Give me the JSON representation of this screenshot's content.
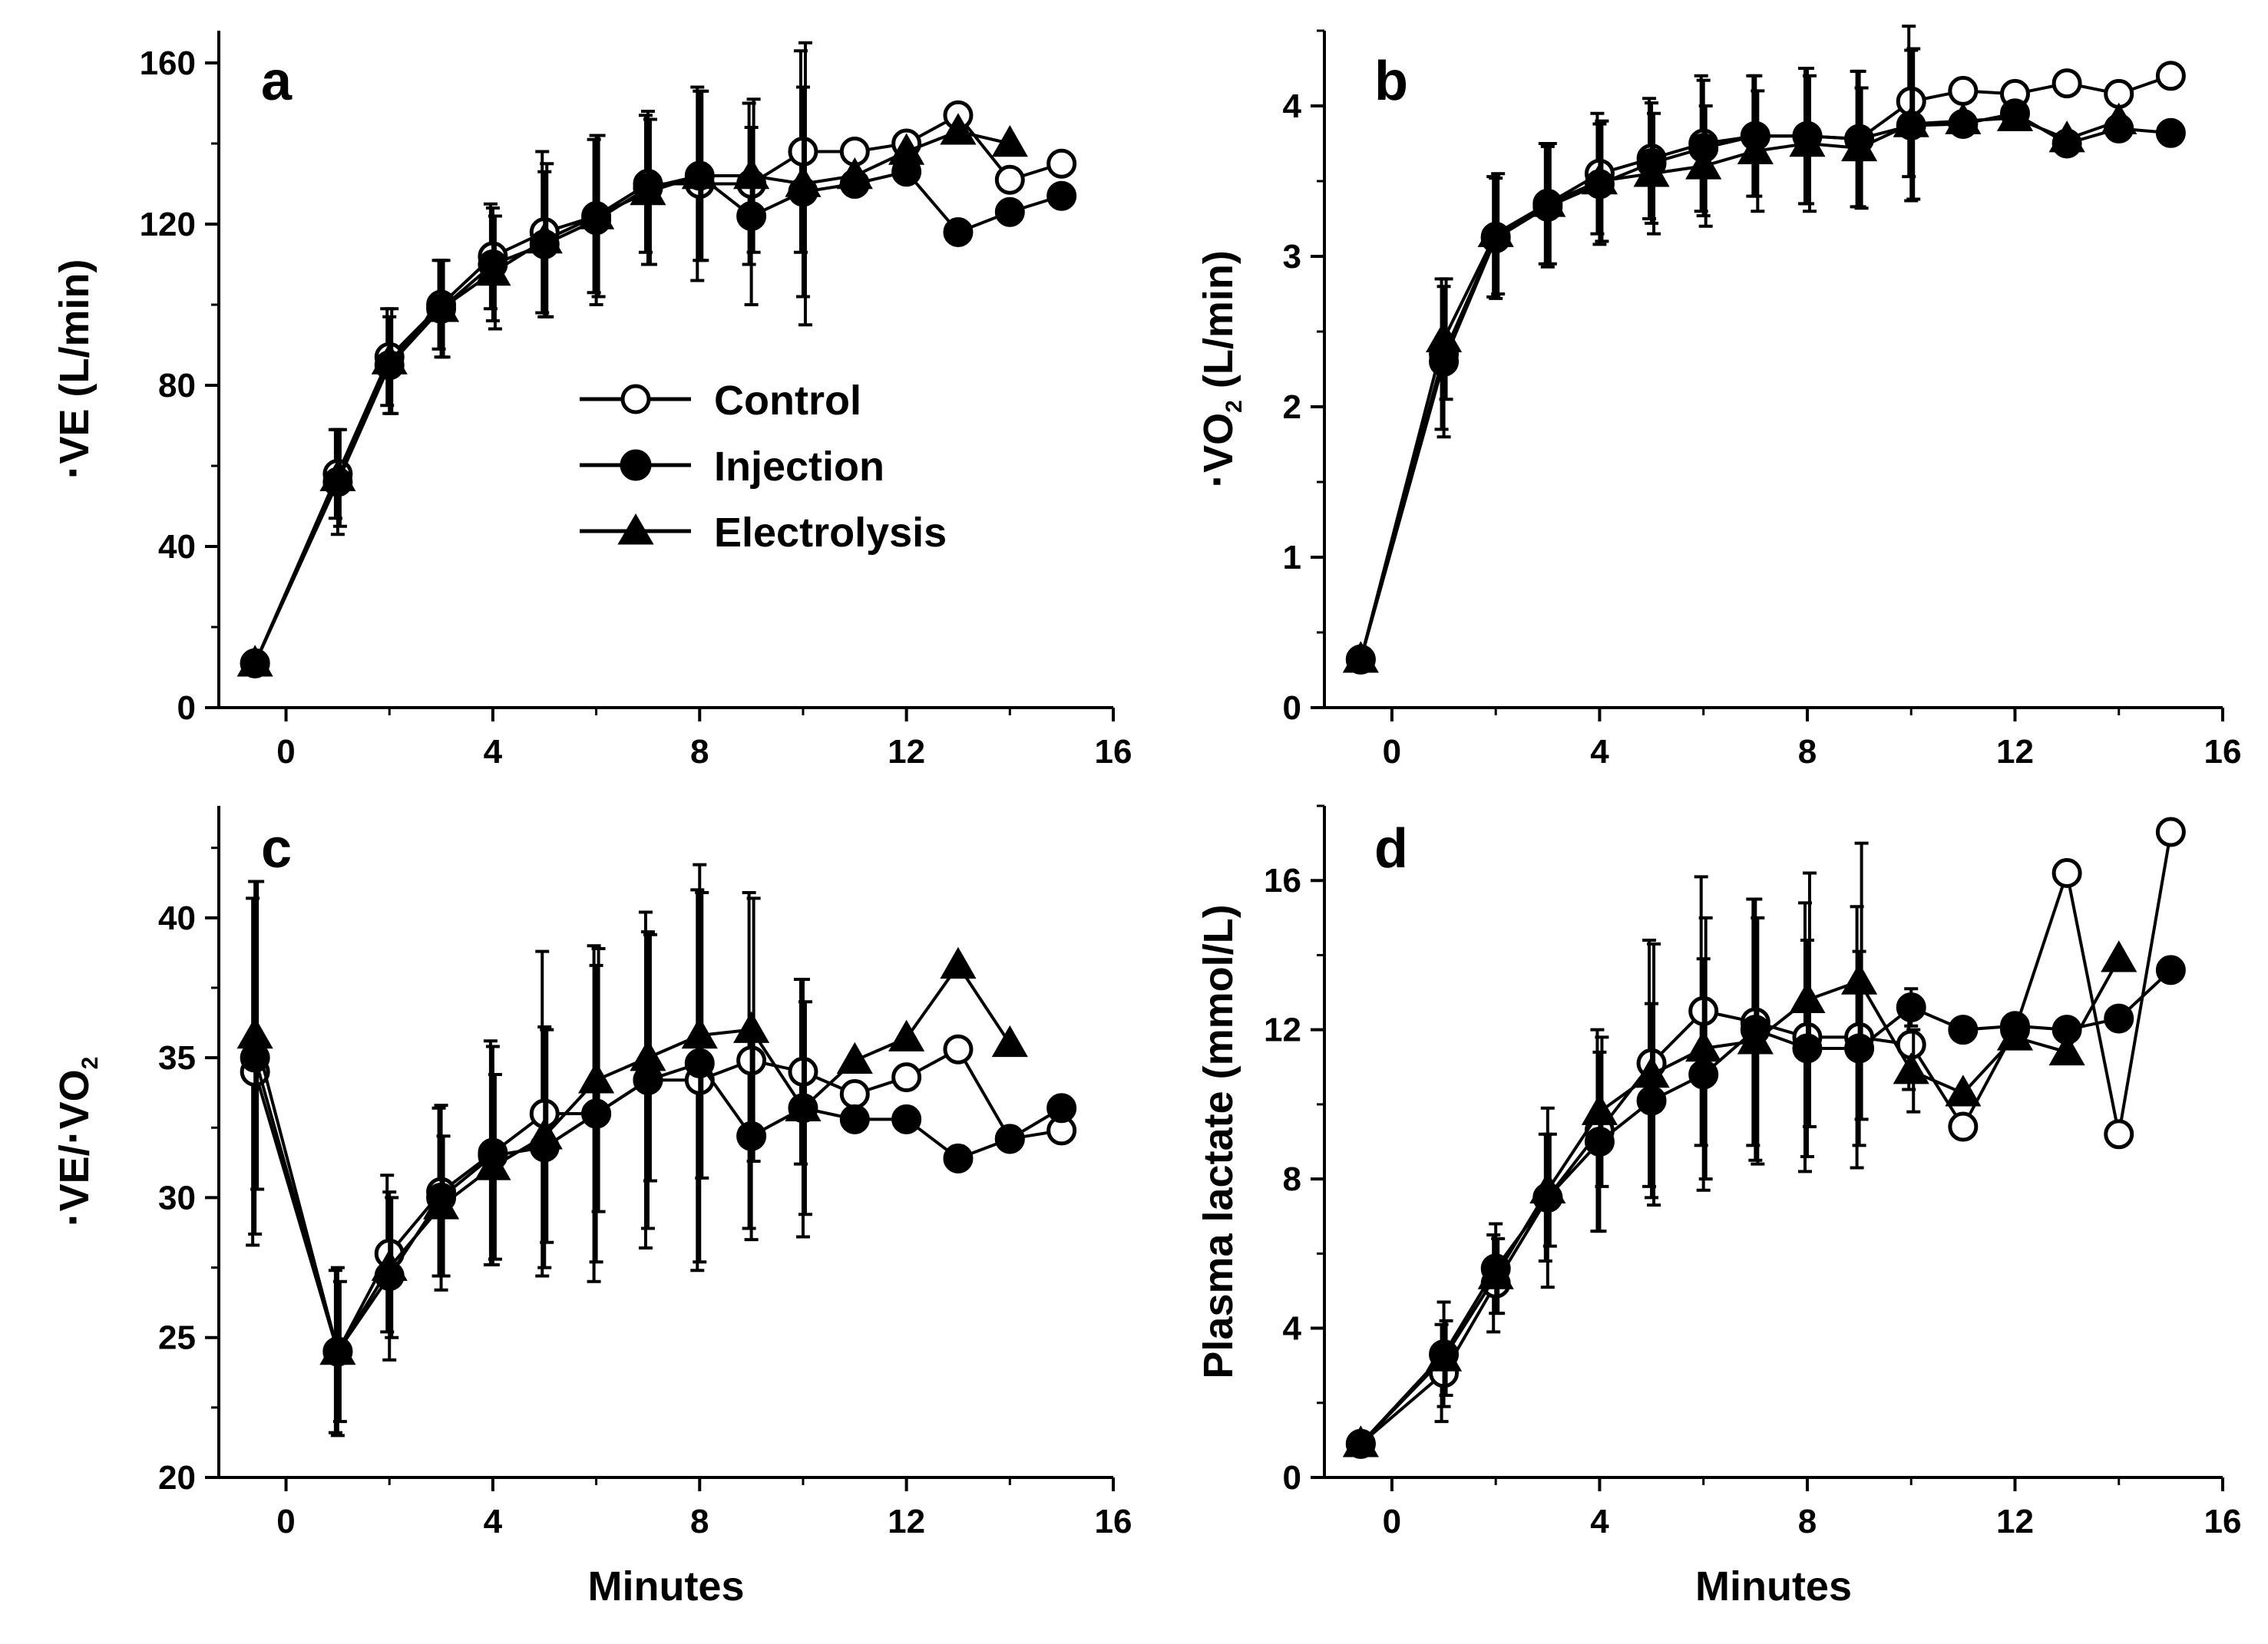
{
  "figure": {
    "x_label": "Minutes",
    "legend": [
      {
        "name": "Control",
        "marker": "open-circle"
      },
      {
        "name": "Injection",
        "marker": "filled-circle"
      },
      {
        "name": "Electrolysis",
        "marker": "filled-triangle"
      }
    ]
  },
  "chart_data": [
    {
      "panel": "a",
      "type": "line",
      "ylabel": "·VE (L/min)",
      "ylabel_parts": {
        "dot": "·",
        "main": "VE (L/min)",
        "sub": ""
      },
      "xlabel": "",
      "xlim": [
        -1.3,
        16
      ],
      "ylim": [
        0,
        168
      ],
      "xticks": [
        0,
        4,
        8,
        12,
        16
      ],
      "yticks": [
        0,
        40,
        80,
        120,
        160
      ],
      "x": [
        -0.6,
        1,
        2,
        3,
        4,
        5,
        6,
        7,
        8,
        9,
        10,
        11,
        12,
        13,
        14,
        15
      ],
      "series": [
        {
          "name": "Control",
          "marker": "open-circle",
          "values": [
            11,
            58,
            87,
            100,
            112,
            118,
            122,
            130,
            130,
            130,
            138,
            138,
            140,
            147,
            131,
            135
          ],
          "errors": [
            2,
            11,
            12,
            11,
            13,
            20,
            19,
            17,
            24,
            20,
            25,
            0,
            0,
            0,
            0,
            0
          ]
        },
        {
          "name": "Injection",
          "marker": "filled-circle",
          "values": [
            11,
            56,
            85,
            99,
            110,
            115,
            121,
            129,
            132,
            122,
            128,
            130,
            133,
            118,
            123,
            127
          ],
          "errors": [
            2,
            13,
            12,
            12,
            14,
            18,
            21,
            19,
            21,
            22,
            26,
            0,
            0,
            0,
            0,
            0
          ]
        },
        {
          "name": "Electrolysis",
          "marker": "filled-triangle",
          "values": [
            11,
            57,
            86,
            99,
            108,
            116,
            122,
            128,
            132,
            132,
            130,
            132,
            138,
            143,
            140,
            null
          ],
          "errors": [
            2,
            12,
            13,
            12,
            14,
            19,
            20,
            18,
            21,
            19,
            35,
            0,
            0,
            0,
            0,
            0
          ]
        }
      ]
    },
    {
      "panel": "b",
      "type": "line",
      "ylabel": "·VO2 (L/min)",
      "ylabel_parts": {
        "dot": "·",
        "main": "VO",
        "sub": "2",
        "tail": " (L/min)"
      },
      "xlabel": "",
      "xlim": [
        -1.3,
        16
      ],
      "ylim": [
        0,
        4.5
      ],
      "xticks": [
        0,
        4,
        8,
        12,
        16
      ],
      "yticks": [
        0,
        1,
        2,
        3,
        4
      ],
      "x": [
        -0.6,
        1,
        2,
        3,
        4,
        5,
        6,
        7,
        8,
        9,
        10,
        11,
        12,
        13,
        14,
        15
      ],
      "series": [
        {
          "name": "Control",
          "marker": "open-circle",
          "values": [
            0.32,
            2.35,
            3.13,
            3.35,
            3.55,
            3.65,
            3.75,
            3.8,
            3.8,
            3.78,
            4.03,
            4.1,
            4.08,
            4.15,
            4.08,
            4.2
          ],
          "errors": [
            0.05,
            0.5,
            0.4,
            0.4,
            0.4,
            0.4,
            0.45,
            0.4,
            0.45,
            0.45,
            0.5,
            0,
            0,
            0,
            0,
            0
          ]
        },
        {
          "name": "Injection",
          "marker": "filled-circle",
          "values": [
            0.32,
            2.3,
            3.12,
            3.33,
            3.48,
            3.62,
            3.72,
            3.8,
            3.8,
            3.78,
            3.87,
            3.88,
            3.95,
            3.75,
            3.85,
            3.82
          ],
          "errors": [
            0.05,
            0.5,
            0.4,
            0.4,
            0.4,
            0.4,
            0.45,
            0.4,
            0.45,
            0.45,
            0.5,
            0,
            0,
            0,
            0,
            0
          ]
        },
        {
          "name": "Electrolysis",
          "marker": "filled-triangle",
          "values": [
            0.32,
            2.45,
            3.15,
            3.35,
            3.5,
            3.55,
            3.6,
            3.7,
            3.75,
            3.72,
            3.88,
            3.9,
            3.92,
            3.78,
            3.9,
            null
          ],
          "errors": [
            0.05,
            0.4,
            0.4,
            0.4,
            0.4,
            0.4,
            0.4,
            0.4,
            0.45,
            0.4,
            0.5,
            0,
            0,
            0,
            0,
            0
          ]
        }
      ]
    },
    {
      "panel": "c",
      "type": "line",
      "ylabel": "·VE/·VO2",
      "ylabel_parts": {
        "dot": "·",
        "main": "VE/",
        "dot2": "·",
        "main2": "VO",
        "sub": "2"
      },
      "xlabel": "Minutes",
      "xlim": [
        -1.3,
        16
      ],
      "ylim": [
        20,
        44
      ],
      "xticks": [
        0,
        4,
        8,
        12,
        16
      ],
      "yticks": [
        20,
        25,
        30,
        35,
        40
      ],
      "x": [
        -0.6,
        1,
        2,
        3,
        4,
        5,
        6,
        7,
        8,
        9,
        10,
        11,
        12,
        13,
        14,
        15
      ],
      "series": [
        {
          "name": "Control",
          "marker": "open-circle",
          "values": [
            34.5,
            24.5,
            28.0,
            30.2,
            31.6,
            33.0,
            33.0,
            34.2,
            34.2,
            34.9,
            34.5,
            33.7,
            34.3,
            35.3,
            32.1,
            32.4
          ],
          "errors": [
            6.2,
            2.9,
            2.8,
            3.0,
            4.0,
            5.8,
            6.0,
            6.0,
            6.8,
            6.0,
            3.3,
            0,
            0,
            0,
            0,
            0
          ]
        },
        {
          "name": "Injection",
          "marker": "filled-circle",
          "values": [
            35.0,
            24.5,
            27.2,
            30.0,
            31.5,
            31.8,
            33.0,
            34.2,
            34.8,
            32.2,
            33.2,
            32.8,
            32.8,
            31.4,
            32.1,
            33.2
          ],
          "errors": [
            6.3,
            3.0,
            3.0,
            3.3,
            3.9,
            4.3,
            5.3,
            5.3,
            7.1,
            3.7,
            4.6,
            0,
            0,
            0,
            0,
            0
          ]
        },
        {
          "name": "Electrolysis",
          "marker": "filled-triangle",
          "values": [
            35.8,
            24.5,
            27.5,
            29.7,
            31.1,
            32.2,
            34.2,
            35.0,
            35.8,
            36.0,
            33.2,
            34.9,
            35.7,
            38.3,
            35.5,
            null
          ],
          "errors": [
            5.5,
            2.5,
            2.5,
            2.5,
            3.3,
            3.8,
            4.7,
            4.4,
            5.1,
            4.7,
            3.8,
            0,
            0,
            0,
            0,
            0
          ]
        }
      ]
    },
    {
      "panel": "d",
      "type": "line",
      "ylabel": "Plasma lactate (mmol/L)",
      "ylabel_parts": {
        "main": "Plasma lactate (mmol/L)"
      },
      "xlabel": "Minutes",
      "xlim": [
        -1.3,
        16
      ],
      "ylim": [
        0,
        18
      ],
      "xticks": [
        0,
        4,
        8,
        12,
        16
      ],
      "yticks": [
        0,
        4,
        8,
        12,
        16
      ],
      "x": [
        -0.6,
        1,
        2,
        3,
        4,
        5,
        6,
        7,
        8,
        9,
        10,
        11,
        12,
        13,
        14,
        15
      ],
      "series": [
        {
          "name": "Control",
          "marker": "open-circle",
          "values": [
            0.9,
            2.8,
            5.2,
            7.5,
            9.3,
            11.1,
            12.5,
            12.2,
            11.8,
            11.8,
            11.6,
            9.4,
            12.0,
            16.2,
            9.2,
            17.3
          ],
          "errors": [
            0.2,
            1.3,
            1.3,
            1.7,
            2.7,
            3.3,
            3.6,
            3.3,
            3.6,
            3.5,
            1.2,
            0,
            0,
            0,
            0,
            0
          ]
        },
        {
          "name": "Injection",
          "marker": "filled-circle",
          "values": [
            0.9,
            3.3,
            5.6,
            7.5,
            9.0,
            10.1,
            10.8,
            12.0,
            11.5,
            11.5,
            12.6,
            12.0,
            12.1,
            12.0,
            12.3,
            13.6
          ],
          "errors": [
            0.2,
            1.4,
            1.2,
            2.4,
            2.4,
            2.6,
            3.1,
            3.5,
            2.9,
            2.6,
            0.5,
            0,
            0,
            0,
            0,
            0
          ]
        },
        {
          "name": "Electrolysis",
          "marker": "filled-triangle",
          "values": [
            0.9,
            3.2,
            5.4,
            7.7,
            9.8,
            10.8,
            11.5,
            11.7,
            12.8,
            13.3,
            10.9,
            10.3,
            11.8,
            11.4,
            13.9,
            null
          ],
          "errors": [
            0.2,
            1.0,
            1.0,
            1.5,
            2.0,
            3.5,
            3.5,
            3.3,
            3.4,
            3.7,
            1.1,
            0,
            0,
            0,
            0,
            0
          ]
        }
      ]
    }
  ]
}
